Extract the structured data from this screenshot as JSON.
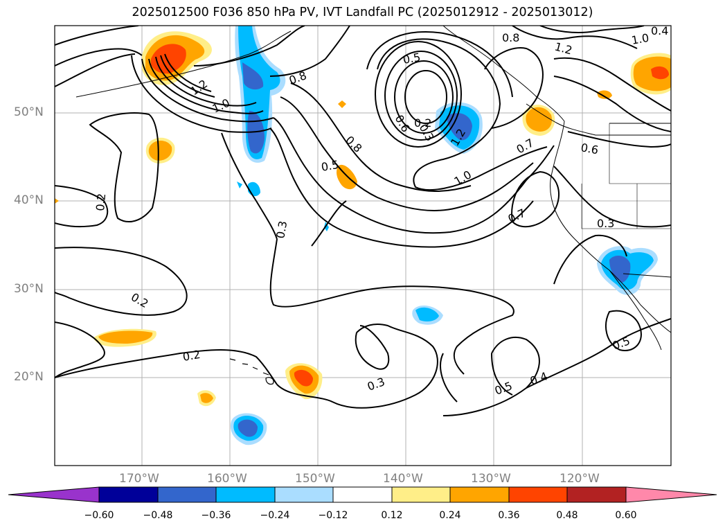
{
  "title": "2025012500 F036 850 hPa PV, IVT Landfall PC (2025012912 - 2025013012)",
  "lat_labels": [
    "50°N",
    "40°N",
    "30°N",
    "20°N"
  ],
  "lon_labels": [
    "170°W",
    "160°W",
    "150°W",
    "140°W",
    "130°W",
    "120°W"
  ],
  "contour_labels": [
    "0.2",
    "0.2",
    "0.2",
    "0.3",
    "0.3",
    "0.3",
    "0.3",
    "0.4",
    "0.5",
    "0.5",
    "0.5",
    "0.5",
    "0.6",
    "0.6",
    "0.7",
    "0.7",
    "0.8",
    "0.8",
    "0.8",
    "1.0",
    "1.0",
    "1.0",
    "1.2",
    "1.2",
    "1.2",
    "0.2",
    "0.4"
  ],
  "colorbar": {
    "ticks": [
      "−0.60",
      "−0.48",
      "−0.36",
      "−0.24",
      "−0.12",
      "0.12",
      "0.24",
      "0.36",
      "0.48",
      "0.60"
    ],
    "colors": [
      "#9933cc",
      "#000099",
      "#3366cc",
      "#00bbff",
      "#aaddff",
      "#ffffff",
      "#ffee88",
      "#ffa500",
      "#ff4400",
      "#b22222",
      "#ff88aa"
    ]
  },
  "colors": {
    "grid": "#b0b0b0",
    "coast": "#000000",
    "contour": "#000000",
    "axis_label": "#808080"
  }
}
